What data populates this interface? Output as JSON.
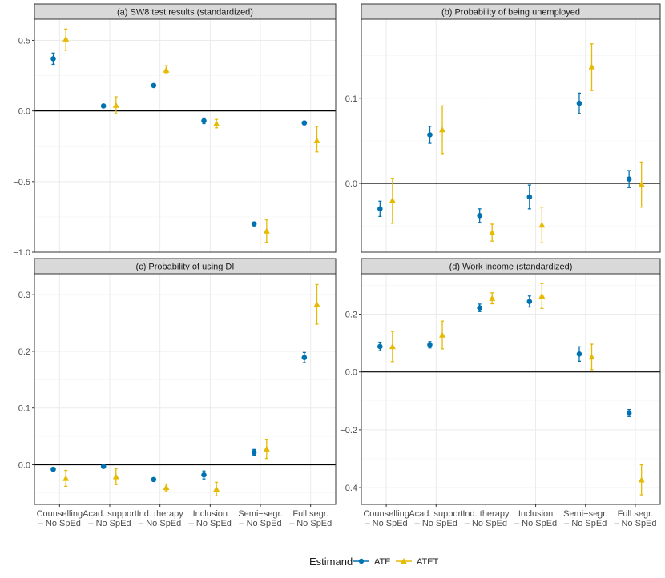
{
  "chart_data": [
    {
      "type": "scatter",
      "title": "(a) SW8 test results (standardized)",
      "categories": [
        "Counselling\n– No SpEd",
        "Acad. support\n– No SpEd",
        "Ind. therapy\n– No SpEd",
        "Inclusion\n– No SpEd",
        "Semi−segr.\n– No SpEd",
        "Full segr.\n– No SpEd"
      ],
      "ylim": [
        -1.0,
        0.65
      ],
      "yticks": [
        -1.0,
        -0.5,
        0.0,
        0.5
      ],
      "ytick_labels": [
        "−1.0",
        "−0.5",
        "0.0",
        "0.5"
      ],
      "show_x_labels": false,
      "series": [
        {
          "name": "ATE",
          "values": [
            0.37,
            0.035,
            0.18,
            -0.07,
            -0.8,
            -0.085
          ],
          "lower": [
            0.33,
            0.03,
            0.17,
            -0.09,
            -0.81,
            -0.095
          ],
          "upper": [
            0.41,
            0.04,
            0.19,
            -0.05,
            -0.79,
            -0.075
          ]
        },
        {
          "name": "ATET",
          "values": [
            0.51,
            0.04,
            0.29,
            -0.09,
            -0.85,
            -0.21
          ],
          "lower": [
            0.43,
            -0.02,
            0.27,
            -0.12,
            -0.93,
            -0.29
          ],
          "upper": [
            0.58,
            0.1,
            0.32,
            -0.06,
            -0.77,
            -0.11
          ]
        }
      ]
    },
    {
      "type": "scatter",
      "title": "(b) Probability of being unemployed",
      "categories": [
        "Counselling\n– No SpEd",
        "Acad. support\n– No SpEd",
        "Ind. therapy\n– No SpEd",
        "Inclusion\n– No SpEd",
        "Semi−segr.\n– No SpEd",
        "Full segr.\n– No SpEd"
      ],
      "ylim": [
        -0.081,
        0.193
      ],
      "yticks": [
        0.0,
        0.1
      ],
      "ytick_labels": [
        "0.0",
        "0.1"
      ],
      "show_x_labels": false,
      "series": [
        {
          "name": "ATE",
          "values": [
            -0.03,
            0.057,
            -0.038,
            -0.016,
            0.094,
            0.005
          ],
          "lower": [
            -0.039,
            0.047,
            -0.046,
            -0.03,
            0.082,
            -0.005
          ],
          "upper": [
            -0.021,
            0.067,
            -0.03,
            -0.002,
            0.106,
            0.015
          ]
        },
        {
          "name": "ATET",
          "values": [
            -0.02,
            0.063,
            -0.058,
            -0.049,
            0.137,
            -0.001
          ],
          "lower": [
            -0.047,
            0.035,
            -0.068,
            -0.07,
            0.109,
            -0.028
          ],
          "upper": [
            0.006,
            0.091,
            -0.048,
            -0.028,
            0.164,
            0.025
          ]
        }
      ]
    },
    {
      "type": "scatter",
      "title": "(c) Probability of using DI",
      "categories": [
        "Counselling\n– No SpEd",
        "Acad. support\n– No SpEd",
        "Ind. therapy\n– No SpEd",
        "Inclusion\n– No SpEd",
        "Semi−segr.\n– No SpEd",
        "Full segr.\n– No SpEd"
      ],
      "ylim": [
        -0.07,
        0.337
      ],
      "yticks": [
        0.0,
        0.1,
        0.2,
        0.3
      ],
      "ytick_labels": [
        "0.0",
        "0.1",
        "0.2",
        "0.3"
      ],
      "show_x_labels": true,
      "series": [
        {
          "name": "ATE",
          "values": [
            -0.008,
            -0.003,
            -0.026,
            -0.018,
            0.022,
            0.189
          ],
          "lower": [
            -0.011,
            -0.006,
            -0.029,
            -0.025,
            0.017,
            0.18
          ],
          "upper": [
            -0.005,
            0.0,
            -0.023,
            -0.011,
            0.027,
            0.198
          ]
        },
        {
          "name": "ATET",
          "values": [
            -0.024,
            -0.021,
            -0.04,
            -0.043,
            0.028,
            0.283
          ],
          "lower": [
            -0.038,
            -0.035,
            -0.046,
            -0.055,
            0.011,
            0.248
          ],
          "upper": [
            -0.01,
            -0.007,
            -0.034,
            -0.031,
            0.045,
            0.318
          ]
        }
      ]
    },
    {
      "type": "scatter",
      "title": "(d) Work income (standardized)",
      "categories": [
        "Counselling\n– No SpEd",
        "Acad. support\n– No SpEd",
        "Ind. therapy\n– No SpEd",
        "Inclusion\n– No SpEd",
        "Semi−segr.\n– No SpEd",
        "Full segr.\n– No SpEd"
      ],
      "ylim": [
        -0.458,
        0.34
      ],
      "yticks": [
        -0.4,
        -0.2,
        0.0,
        0.2
      ],
      "ytick_labels": [
        "−0.4",
        "−0.2",
        "0.0",
        "0.2"
      ],
      "show_x_labels": true,
      "series": [
        {
          "name": "ATE",
          "values": [
            0.088,
            0.094,
            0.222,
            0.244,
            0.062,
            -0.142
          ],
          "lower": [
            0.073,
            0.083,
            0.209,
            0.225,
            0.037,
            -0.154
          ],
          "upper": [
            0.103,
            0.105,
            0.235,
            0.263,
            0.087,
            -0.13
          ]
        },
        {
          "name": "ATET",
          "values": [
            0.088,
            0.128,
            0.255,
            0.263,
            0.052,
            -0.373
          ],
          "lower": [
            0.036,
            0.08,
            0.236,
            0.22,
            0.008,
            -0.425
          ],
          "upper": [
            0.14,
            0.176,
            0.274,
            0.306,
            0.096,
            -0.321
          ]
        }
      ]
    }
  ],
  "legend": {
    "title": "Estimand",
    "placement": "bottom",
    "items": [
      {
        "label": "ATE",
        "color": "#0072B2",
        "shape": "circle"
      },
      {
        "label": "ATET",
        "color": "#E6BA00",
        "shape": "triangle"
      }
    ]
  }
}
